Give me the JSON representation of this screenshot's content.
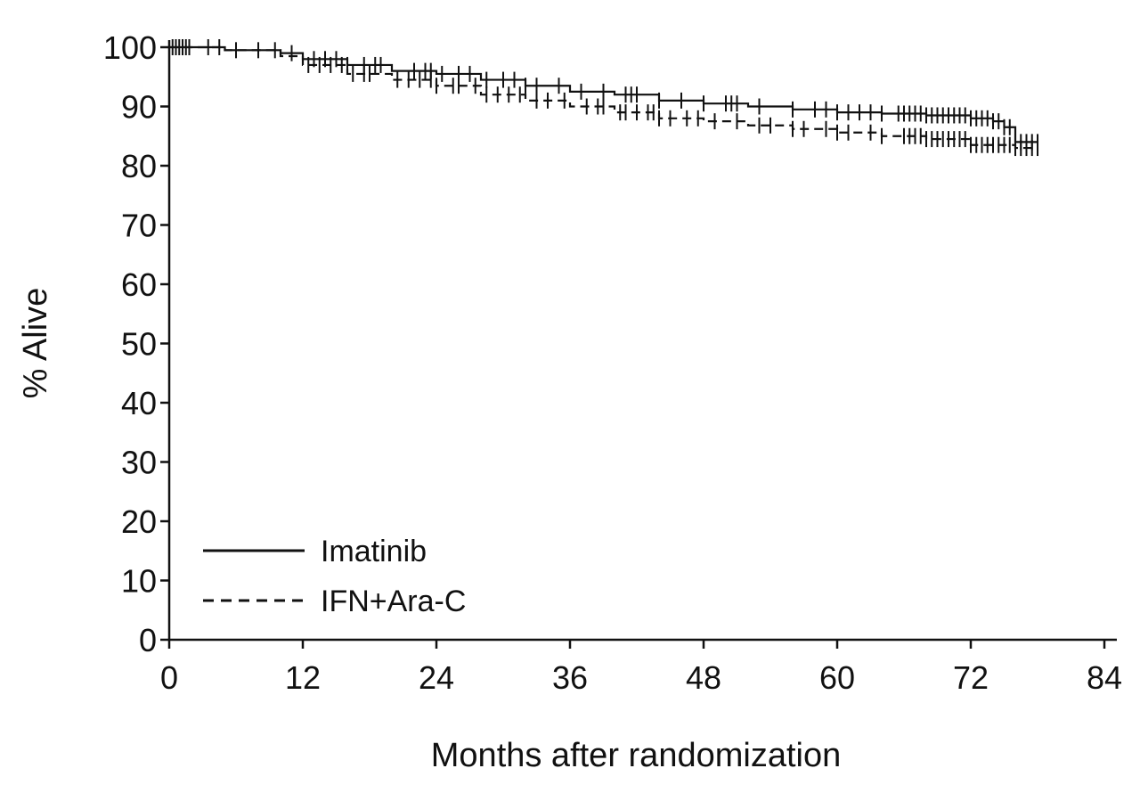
{
  "chart_data": {
    "type": "line",
    "title": "",
    "xlabel": "Months after randomization",
    "ylabel": "% Alive",
    "xlim": [
      0,
      84
    ],
    "ylim": [
      0,
      100
    ],
    "xticks": [
      "0",
      "12",
      "24",
      "36",
      "48",
      "60",
      "72",
      "84"
    ],
    "yticks": [
      "0",
      "10",
      "20",
      "30",
      "40",
      "50",
      "60",
      "70",
      "80",
      "90",
      "100"
    ],
    "grid": false,
    "legend_position": "bottom-left",
    "series": [
      {
        "name": "Imatinib",
        "style": "solid",
        "color": "#111111",
        "x": [
          0,
          5,
          10,
          12,
          16,
          20,
          24,
          28,
          32,
          36,
          40,
          44,
          48,
          52,
          56,
          60,
          64,
          68,
          72,
          74,
          75,
          76,
          78
        ],
        "y": [
          100,
          99.5,
          99,
          98,
          97,
          96,
          95.5,
          94.5,
          93.5,
          92.5,
          92,
          91,
          90.5,
          90,
          89.5,
          89,
          88.8,
          88.5,
          88,
          87.5,
          86.5,
          84,
          84
        ],
        "censor_x": [
          0.3,
          0.6,
          0.9,
          1.2,
          1.5,
          1.8,
          3.5,
          4.5,
          6,
          8,
          9.5,
          11,
          13,
          14,
          15,
          16,
          17.5,
          18.5,
          19,
          22,
          23,
          23.5,
          24.5,
          26,
          27,
          28.5,
          30,
          31,
          32,
          33,
          35,
          37,
          39,
          41,
          41.5,
          42,
          44,
          46,
          48,
          50,
          50.5,
          51,
          53,
          56,
          58,
          59,
          60,
          61,
          62,
          63,
          64,
          65.5,
          66,
          66.5,
          67,
          67.5,
          68,
          68.5,
          69,
          69.5,
          70,
          70.5,
          71,
          71.5,
          72,
          72.5,
          73,
          73.5,
          74,
          74.5,
          75,
          75.5,
          76,
          76.5,
          77,
          77.5,
          78
        ]
      },
      {
        "name": "IFN+Ara-C",
        "style": "dashed",
        "color": "#111111",
        "x": [
          0,
          5,
          10,
          12,
          16,
          20,
          24,
          28,
          32,
          36,
          40,
          44,
          48,
          52,
          56,
          60,
          64,
          68,
          72,
          76,
          78
        ],
        "y": [
          100,
          99.5,
          98.5,
          97,
          95.5,
          94.5,
          93.5,
          92,
          91,
          90,
          89,
          88,
          87.5,
          86.8,
          86.2,
          85.6,
          85,
          84.5,
          83.5,
          83,
          83
        ],
        "censor_x": [
          12.5,
          13.5,
          14.5,
          15.5,
          16.5,
          17.5,
          18,
          20.5,
          21.5,
          22.5,
          23.5,
          24,
          25.5,
          26,
          27.5,
          28.5,
          29.5,
          30.5,
          31.5,
          33,
          34,
          35.5,
          37.5,
          38.5,
          39,
          40.5,
          41,
          42,
          43,
          43.5,
          44,
          45,
          46.5,
          47.5,
          49,
          51,
          53,
          54,
          56,
          57,
          59,
          60,
          61,
          63,
          64,
          66,
          66.5,
          67,
          67.5,
          68,
          68.5,
          69,
          69.5,
          70,
          70.5,
          71,
          71.5,
          72,
          72.5,
          73,
          73.5,
          74,
          74.5,
          75,
          75.5,
          76,
          76.5,
          77,
          77.5,
          78
        ]
      }
    ]
  }
}
